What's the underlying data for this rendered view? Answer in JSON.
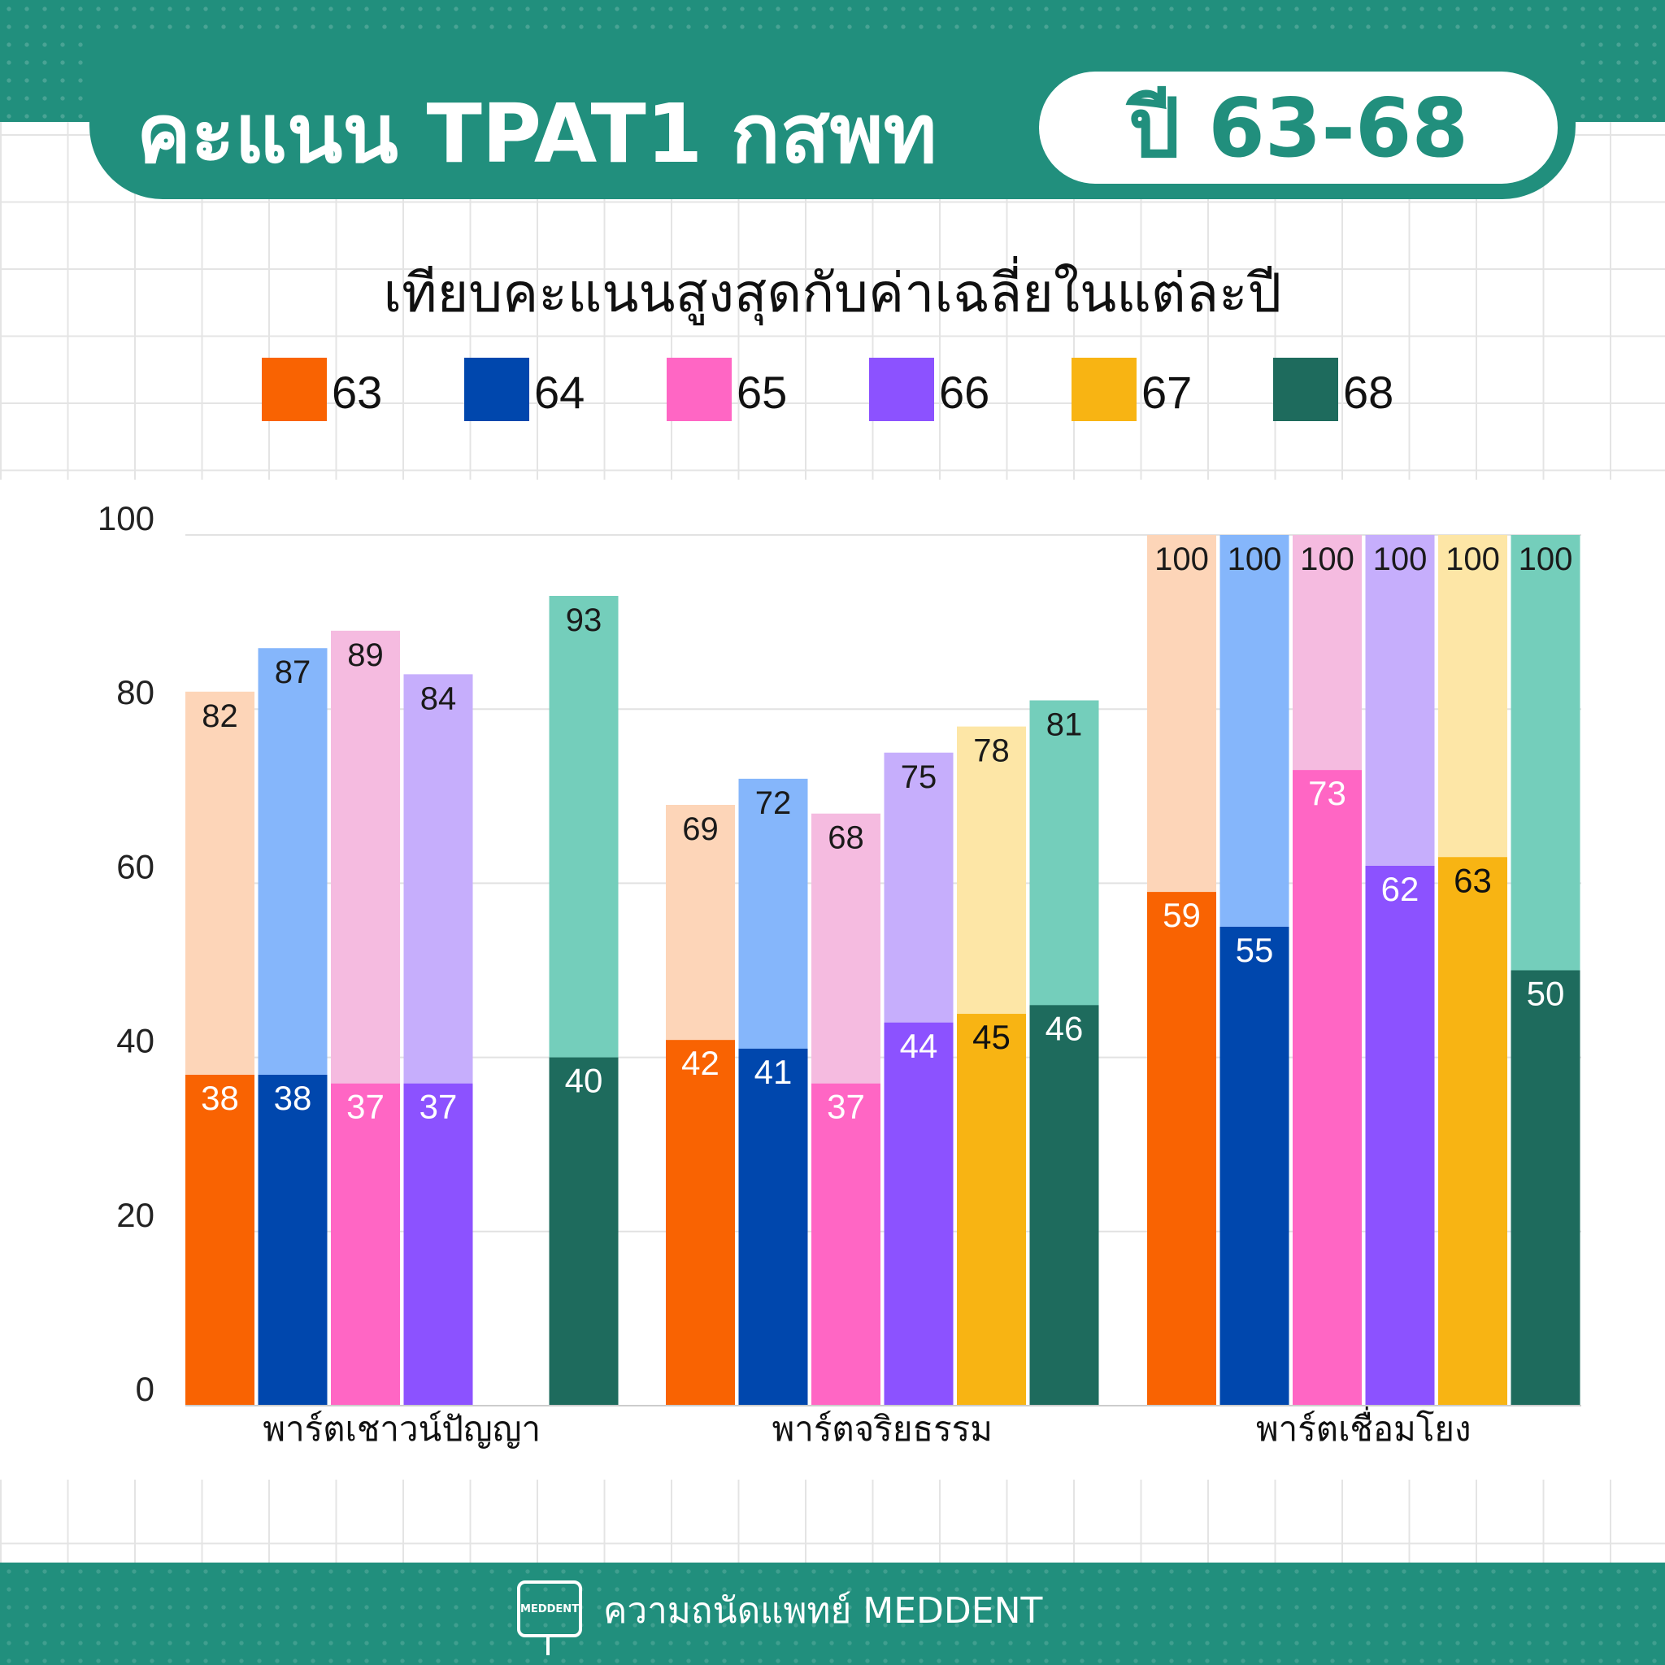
{
  "header": {
    "title": "คะแนน TPAT1 กสพท",
    "year_badge": "ปี 63-68"
  },
  "subtitle": "เทียบคะแนนสูงสุดกับค่าเฉลี่ยในแต่ละปี",
  "legend": [
    {
      "label": "63",
      "color": "#f96302"
    },
    {
      "label": "64",
      "color": "#0047ad"
    },
    {
      "label": "65",
      "color": "#ff66c4"
    },
    {
      "label": "66",
      "color": "#8c52ff"
    },
    {
      "label": "67",
      "color": "#f8b413"
    },
    {
      "label": "68",
      "color": "#1e6b5d"
    }
  ],
  "footer": {
    "logo_text": "MEDDENT",
    "brand": "ความถนัดแพทย์ MEDDENT"
  },
  "chart_data": {
    "type": "bar",
    "categories": [
      "พาร์ตเชาวน์ปัญญา",
      "พาร์ตจริยธรรม",
      "พาร์ตเชื่อมโยง"
    ],
    "ylim": [
      0,
      100
    ],
    "yticks": [
      0,
      20,
      40,
      60,
      80,
      100
    ],
    "grid": true,
    "legend_position": "top",
    "series": [
      {
        "name": "63",
        "color": "#f96302",
        "max_color": "#fdd5b8",
        "average": [
          38,
          42,
          59
        ],
        "max": [
          82,
          69,
          100
        ]
      },
      {
        "name": "64",
        "color": "#0047ad",
        "max_color": "#85b6fb",
        "average": [
          38,
          41,
          55
        ],
        "max": [
          87,
          72,
          100
        ]
      },
      {
        "name": "65",
        "color": "#ff66c4",
        "max_color": "#f5bbe0",
        "average": [
          37,
          37,
          73
        ],
        "max": [
          89,
          68,
          100
        ]
      },
      {
        "name": "66",
        "color": "#8c52ff",
        "max_color": "#c6aefc",
        "average": [
          37,
          44,
          62
        ],
        "max": [
          84,
          75,
          100
        ]
      },
      {
        "name": "67",
        "color": "#f8b413",
        "max_color": "#fde6a6",
        "average": [
          null,
          45,
          63
        ],
        "max": [
          null,
          78,
          100
        ]
      },
      {
        "name": "68",
        "color": "#1e6b5d",
        "max_color": "#74cebb",
        "average": [
          40,
          46,
          50
        ],
        "max": [
          93,
          81,
          100
        ]
      }
    ]
  }
}
